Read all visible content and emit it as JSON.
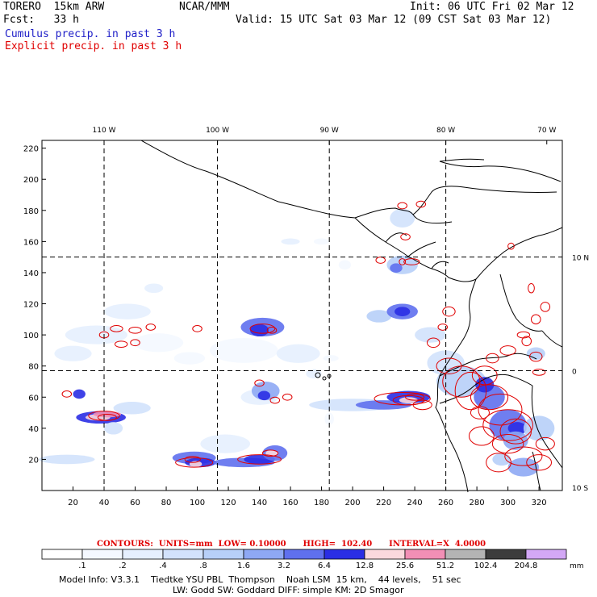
{
  "header": {
    "model": "TORERO  15km ARW",
    "org": "NCAR/MMM",
    "init": "Init: 06 UTC Fri 02 Mar 12",
    "fcst": "Fcst:   33 h",
    "valid": "Valid: 15 UTC Sat 03 Mar 12 (09 CST Sat 03 Mar 12)",
    "cumulus_label": "Cumulus precip. in past 3 h",
    "explicit_label": "Explicit precip. in past 3 h"
  },
  "chart_data": {
    "type": "heatmap",
    "title": "Cumulus precip. in past 3 h / Explicit precip. in past 3 h",
    "x_grid": {
      "range": [
        0,
        335
      ],
      "ticks": [
        20,
        40,
        60,
        80,
        100,
        120,
        140,
        160,
        180,
        200,
        220,
        240,
        260,
        280,
        300,
        320
      ]
    },
    "y_grid": {
      "range": [
        0,
        225
      ],
      "ticks": [
        20,
        40,
        60,
        80,
        100,
        120,
        140,
        160,
        180,
        200,
        220
      ]
    },
    "lon_labels": [
      "110 W",
      "100 W",
      "90 W",
      "80 W",
      "70 W"
    ],
    "lon_label_grid_x": [
      40,
      113,
      185,
      260,
      325
    ],
    "lat_labels": [
      "10 N",
      "0",
      "10 S"
    ],
    "lat_label_grid_y": [
      150,
      77,
      2
    ],
    "color_bar": {
      "thresholds": [
        ".1",
        ".2",
        ".4",
        ".8",
        "1.6",
        "3.2",
        "6.4",
        "12.8",
        "25.6",
        "51.2",
        "102.4",
        "204.8"
      ],
      "colors": [
        "#ffffff",
        "#f4f8ff",
        "#e6effe",
        "#d2e2fc",
        "#b7cff8",
        "#8ea8f4",
        "#5f70ee",
        "#2a2ee4",
        "#fbd9dd",
        "#f28fb5",
        "#b4b4b4",
        "#3c3c3c",
        "#d3a8f6"
      ],
      "unit": "mm"
    },
    "contours_label": "CONTOURS:  UNITS=mm  LOW= 0.10000      HIGH=  102.40      INTERVAL=X  4.0000"
  },
  "footer": {
    "line1": "Model Info: V3.3.1    Tiedtke YSU PBL  Thompson    Noah LSM  15 km,    44 levels,    51 sec",
    "line2": "LW: Godd SW: Goddard DIFF: simple KM: 2D Smagor"
  }
}
